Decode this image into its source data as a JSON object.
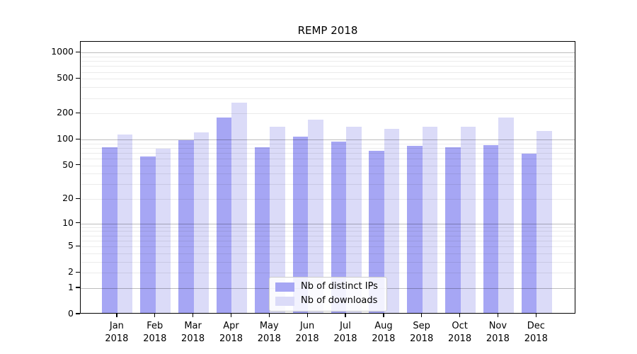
{
  "chart_data": {
    "type": "bar",
    "title": "REMP 2018",
    "categories": [
      "Jan",
      "Feb",
      "Mar",
      "Apr",
      "May",
      "Jun",
      "Jul",
      "Aug",
      "Sep",
      "Oct",
      "Nov",
      "Dec"
    ],
    "category_year": "2018",
    "series": [
      {
        "name": "Nb of distinct IPs",
        "color": "#a6a6f4",
        "values": [
          78,
          61,
          95,
          172,
          79,
          105,
          92,
          71,
          81,
          78,
          83,
          66
        ]
      },
      {
        "name": "Nb of downloads",
        "color": "#dbdbf8",
        "values": [
          110,
          76,
          117,
          255,
          135,
          164,
          135,
          128,
          136,
          136,
          173,
          121
        ]
      }
    ],
    "xlabel": "",
    "ylabel": "",
    "y_axis": {
      "scale": "symlog (log(1+v))",
      "tick_labels": [
        "1000",
        "500",
        "200",
        "100",
        "50",
        "20",
        "10",
        "5",
        "2",
        "1",
        "0"
      ],
      "tick_values": [
        1000,
        500,
        200,
        100,
        50,
        20,
        10,
        5,
        2,
        1,
        0
      ],
      "major_gridlines": [
        1,
        10,
        100,
        1000
      ],
      "minor_gridlines": [
        2,
        3,
        4,
        5,
        6,
        7,
        8,
        9,
        20,
        30,
        40,
        50,
        60,
        70,
        80,
        90,
        200,
        300,
        400,
        500,
        600,
        700,
        800,
        900
      ],
      "range_top": 1333
    },
    "grid": true,
    "legend_position": "lower center"
  }
}
